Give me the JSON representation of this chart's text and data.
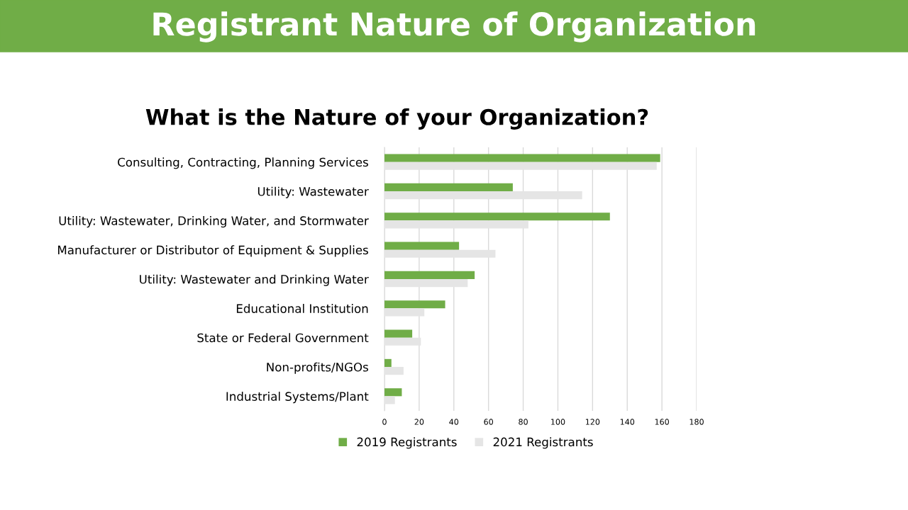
{
  "chart_data": {
    "type": "bar",
    "orientation": "horizontal",
    "title": "Registrant Nature of Organization",
    "subtitle": "What is the Nature of your Organization?",
    "categories": [
      "Consulting, Contracting, Planning Services",
      "Utility: Wastewater",
      "Utility: Wastewater, Drinking Water, and Stormwater",
      "Manufacturer or Distributor of Equipment & Supplies",
      "Utility: Wastewater and Drinking Water",
      "Educational Institution",
      "State or Federal Government",
      "Non-profits/NGOs",
      "Industrial Systems/Plant"
    ],
    "series": [
      {
        "name": "2019 Registrants",
        "color": "#70ad47",
        "values": [
          159,
          74,
          130,
          43,
          52,
          35,
          16,
          4,
          10
        ]
      },
      {
        "name": "2021 Registrants",
        "color": "#e5e5e5",
        "values": [
          157,
          114,
          83,
          64,
          48,
          23,
          21,
          11,
          6
        ]
      }
    ],
    "xlim": [
      0,
      180
    ],
    "xticks": [
      0,
      20,
      40,
      60,
      80,
      100,
      120,
      140,
      160,
      180
    ],
    "grid": "x",
    "legend": "bottom"
  }
}
